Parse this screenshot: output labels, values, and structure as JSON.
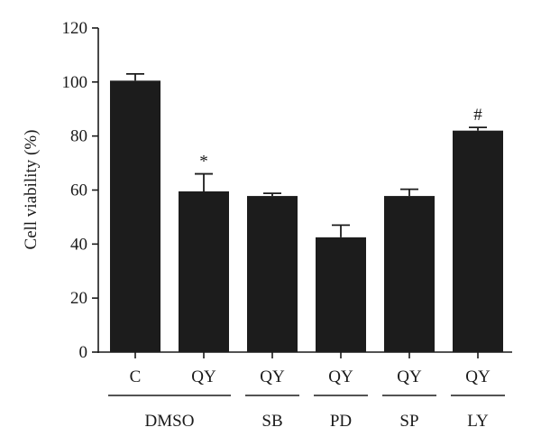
{
  "chart_data": {
    "type": "bar",
    "ylabel": "Cell viability (%)",
    "xlabel": "",
    "ylim": [
      0,
      120
    ],
    "yticks": [
      0,
      20,
      40,
      60,
      80,
      100,
      120
    ],
    "categories": [
      "C",
      "QY",
      "QY",
      "QY",
      "QY",
      "QY"
    ],
    "values": [
      100.5,
      59.5,
      57.8,
      42.5,
      57.8,
      82
    ],
    "errors": [
      2.5,
      6.5,
      1,
      4.5,
      2.5,
      1.2
    ],
    "annotations": [
      "",
      "*",
      "",
      "",
      "",
      "#"
    ],
    "groups": [
      {
        "label": "DMSO",
        "start": 0,
        "end": 1
      },
      {
        "label": "SB",
        "start": 2,
        "end": 2
      },
      {
        "label": "PD",
        "start": 3,
        "end": 3
      },
      {
        "label": "SP",
        "start": 4,
        "end": 4
      },
      {
        "label": "LY",
        "start": 5,
        "end": 5
      }
    ],
    "bar_color": "#1c1c1c",
    "grid": false
  }
}
